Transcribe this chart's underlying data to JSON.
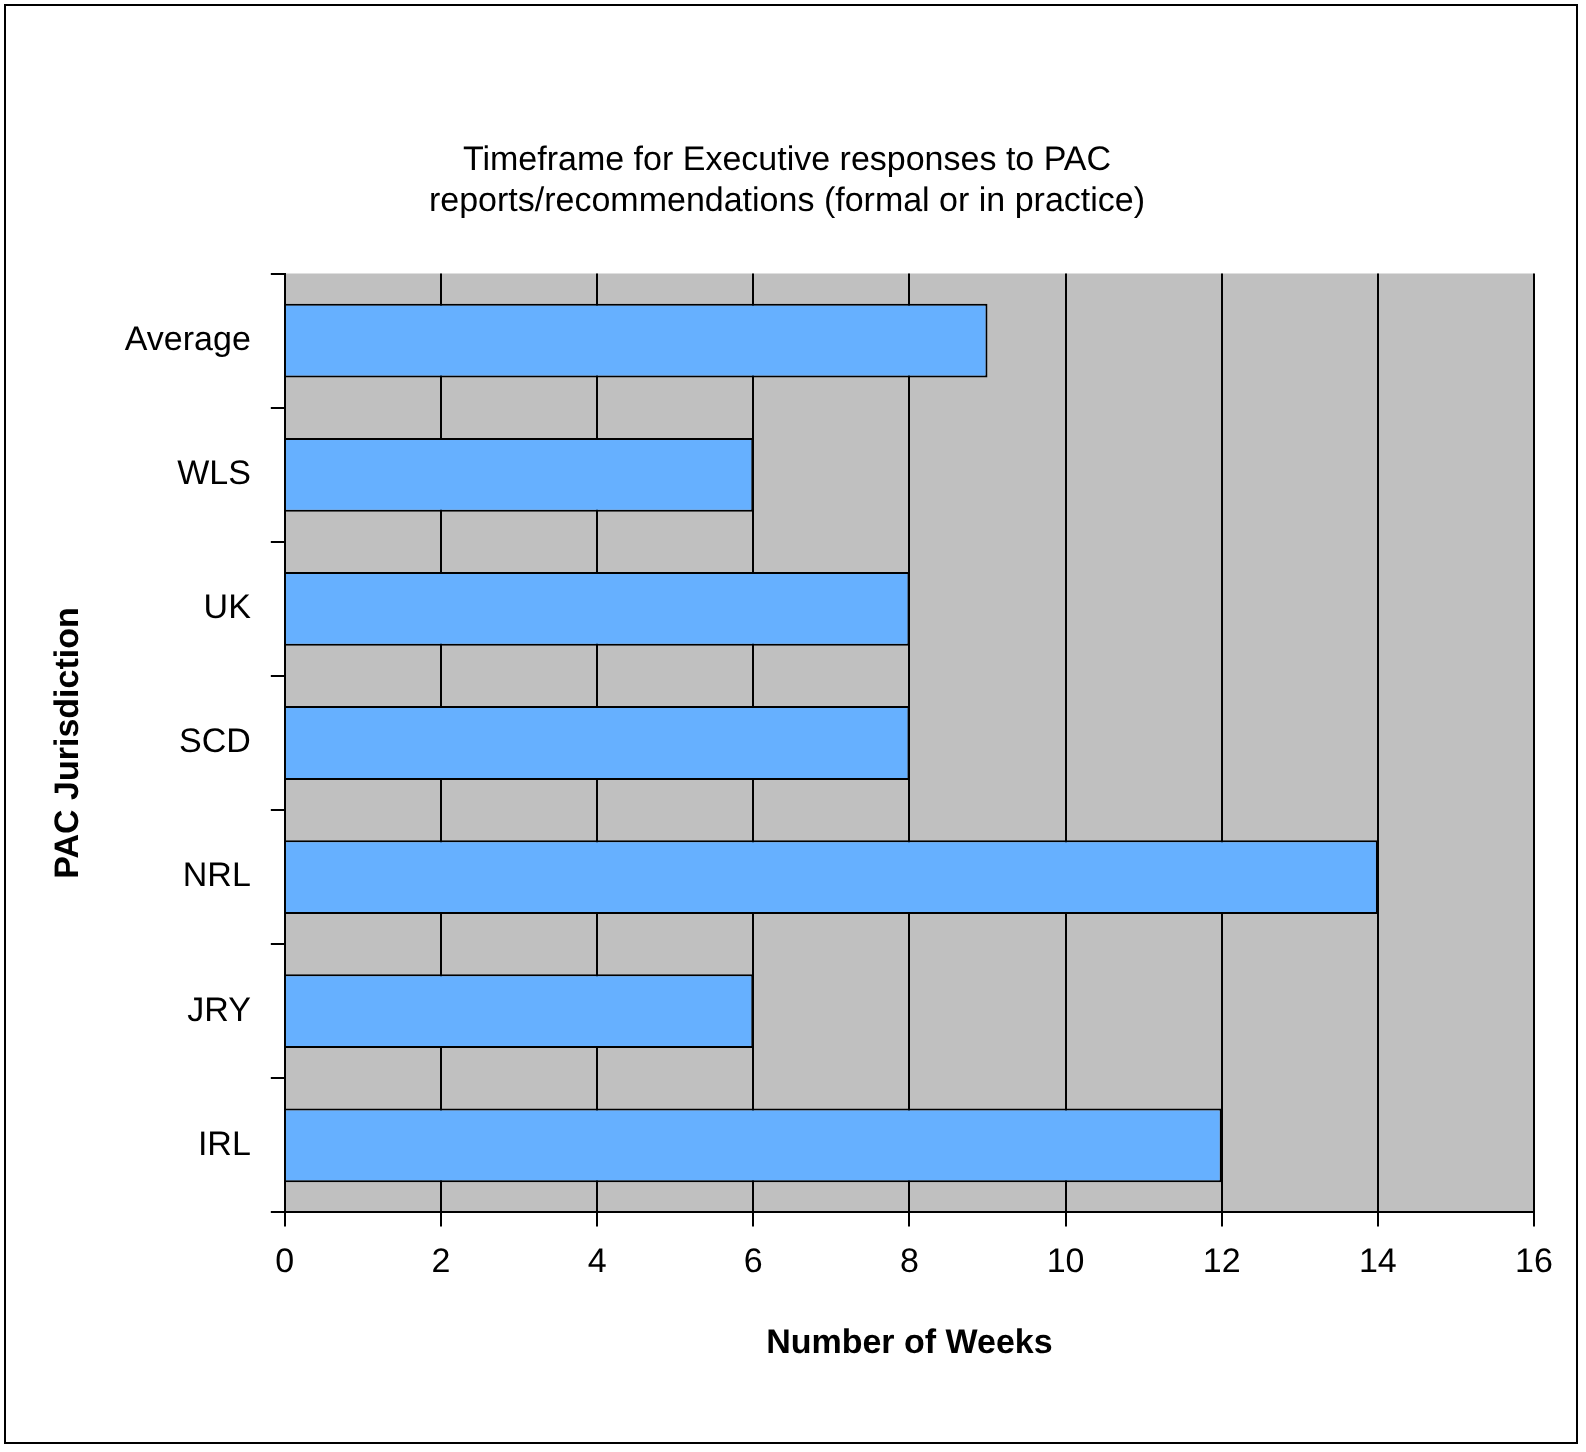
{
  "chart_data": {
    "type": "bar",
    "orientation": "horizontal",
    "title": [
      "Timeframe for Executive responses to PAC",
      "reports/recommendations (formal or in practice)"
    ],
    "xlabel": "Number of Weeks",
    "ylabel": "PAC Jurisdiction",
    "categories": [
      "Average",
      "WLS",
      "UK",
      "SCD",
      "NRL",
      "JRY",
      "IRL"
    ],
    "values": [
      9,
      6,
      8,
      8,
      14,
      6,
      12
    ],
    "color": "#66b0ff",
    "xlim": [
      0,
      16
    ],
    "xticks": [
      0,
      2,
      4,
      6,
      8,
      10,
      12,
      14,
      16
    ],
    "grid": "x"
  }
}
